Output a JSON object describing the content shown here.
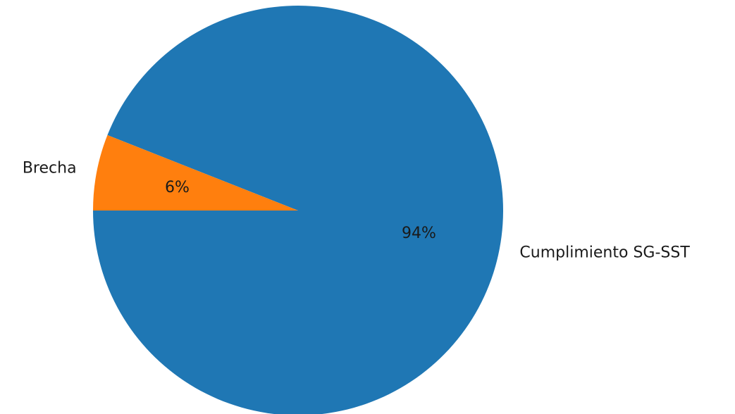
{
  "chart_data": {
    "type": "pie",
    "slices": [
      {
        "label": "Cumplimiento SG-SST",
        "value": 94,
        "pct_label": "94%",
        "color": "#1f77b4"
      },
      {
        "label": "Brecha",
        "value": 6,
        "pct_label": "6%",
        "color": "#ff7f0e"
      }
    ],
    "start_angle_deg": 180,
    "direction": "counterclockwise",
    "title": ""
  }
}
